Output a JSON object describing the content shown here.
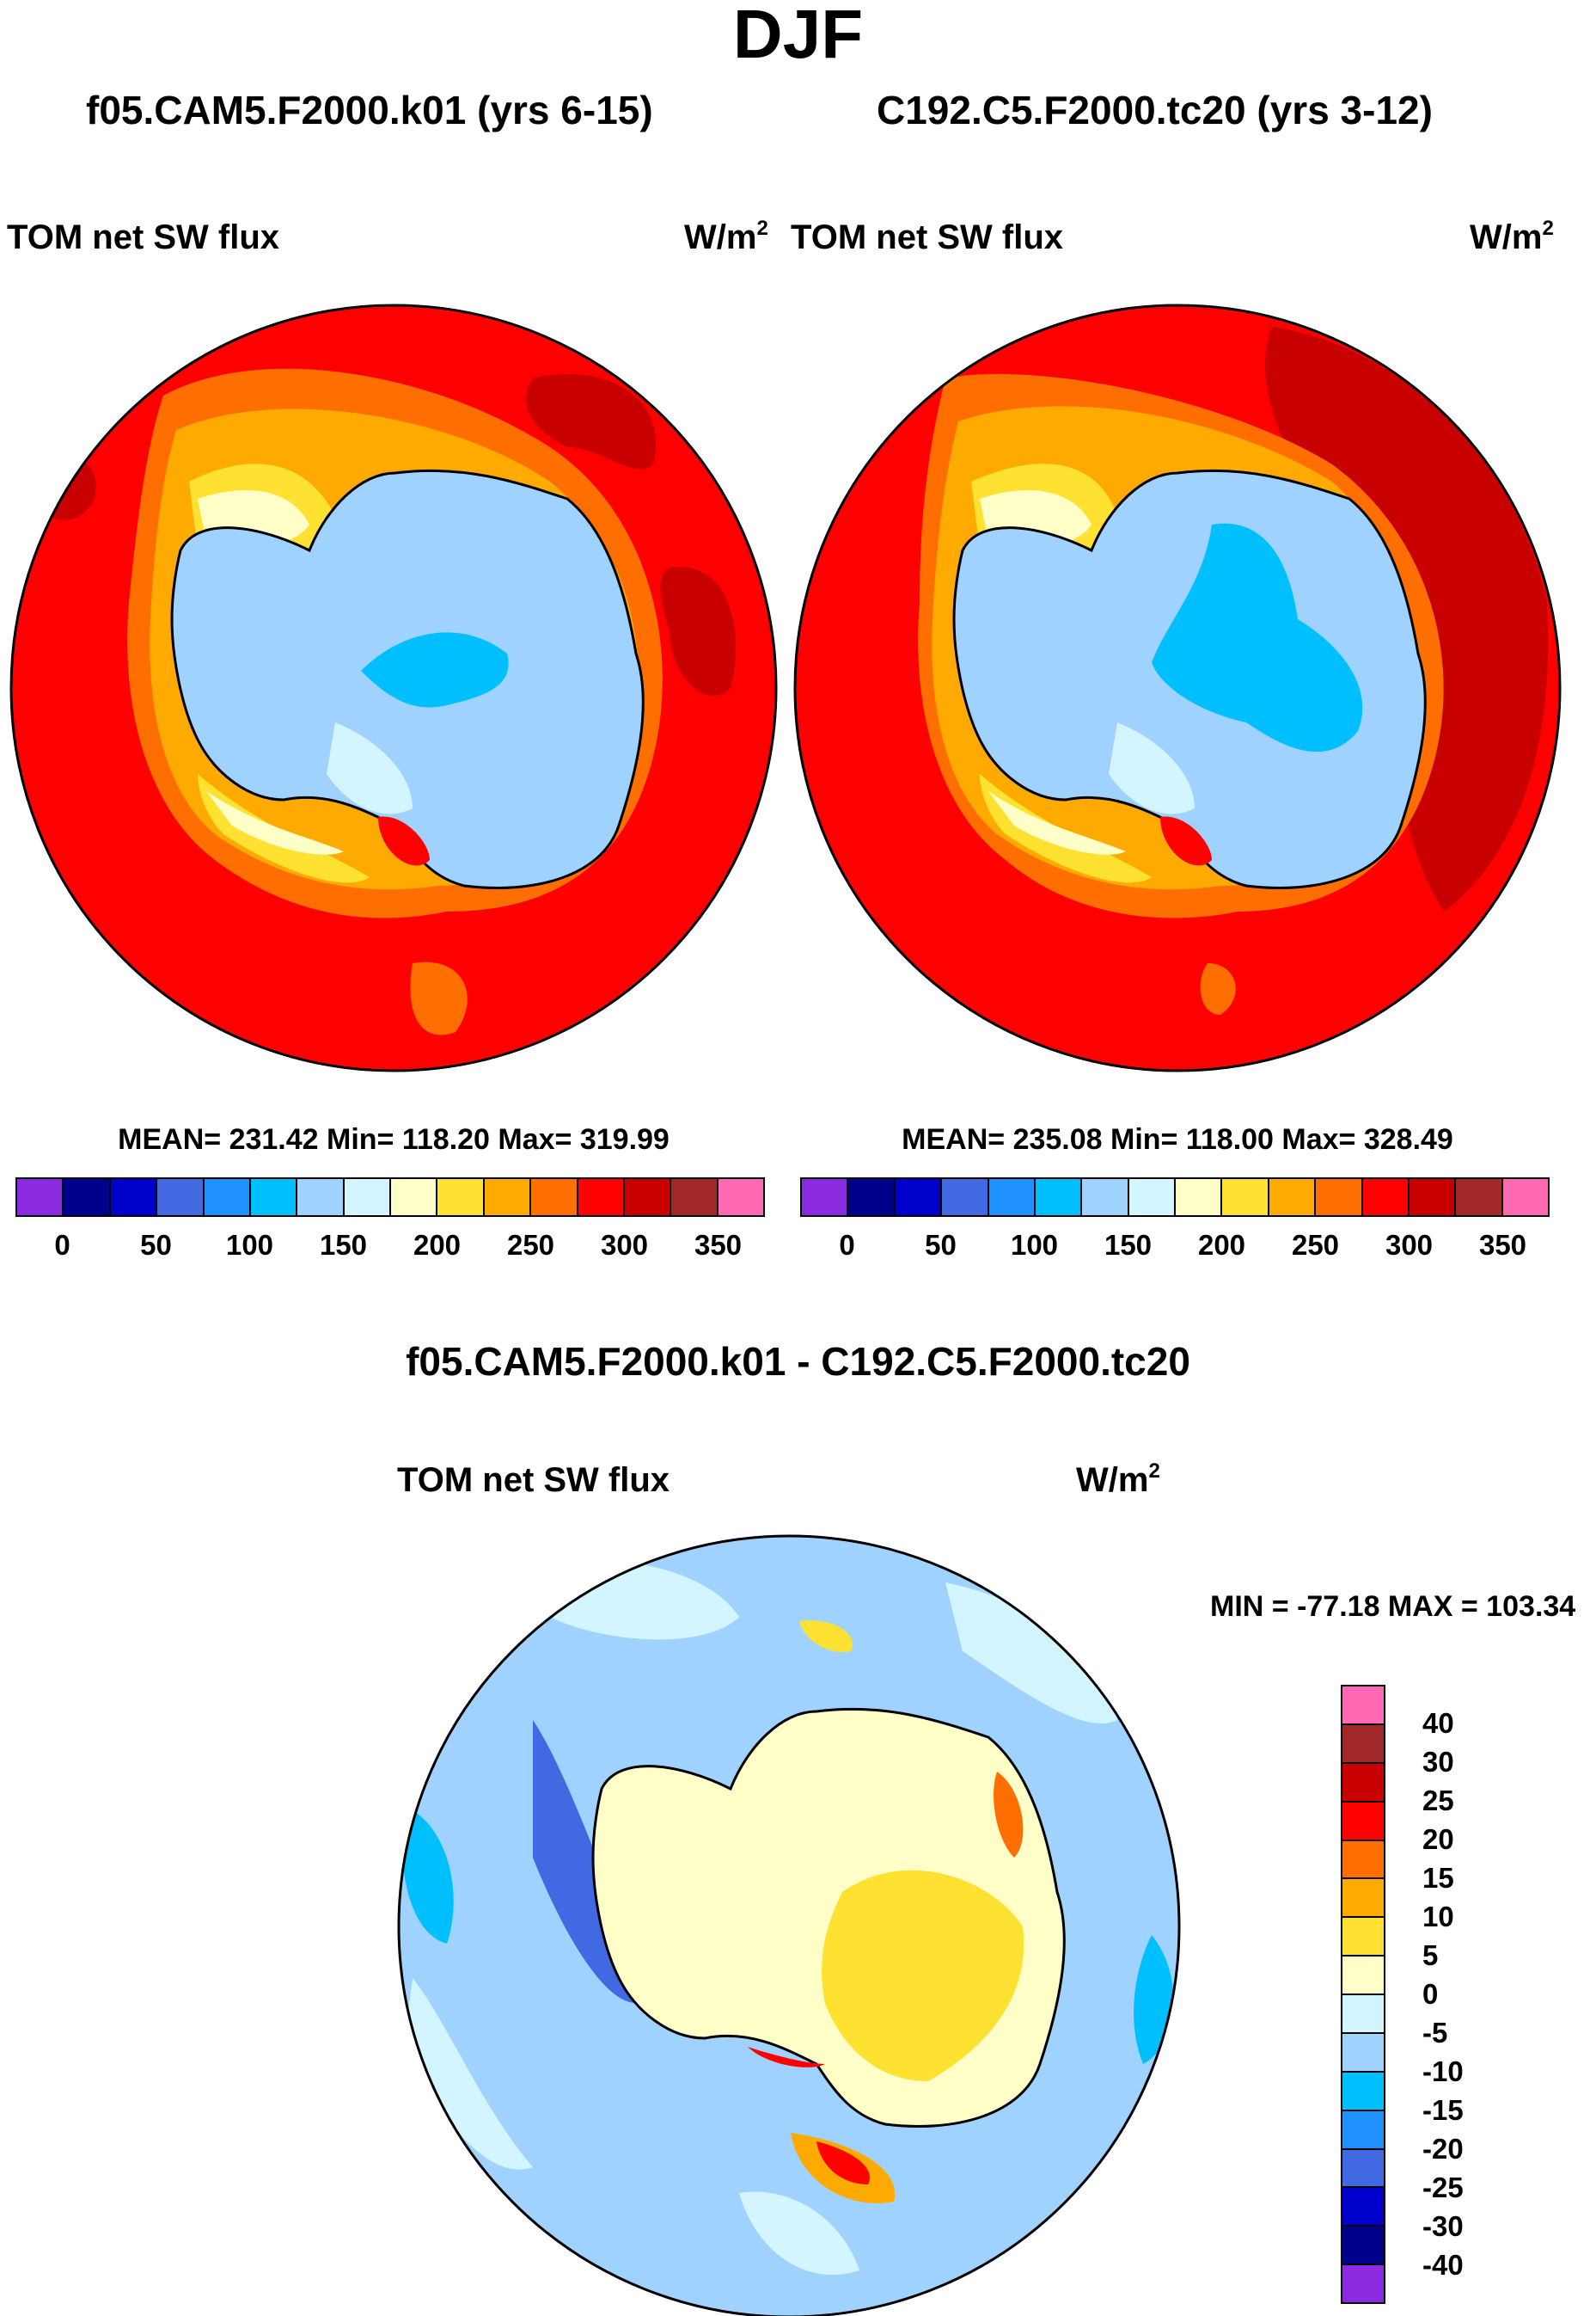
{
  "title": "DJF",
  "panels": [
    {
      "case": "f05.CAM5.F2000.k01 (yrs 6-15)",
      "variable": "TOM net SW flux",
      "units_base": "W/m",
      "units_exp": "2",
      "stats": "MEAN= 231.42  Min= 118.20  Max= 319.99"
    },
    {
      "case": "C192.C5.F2000.tc20 (yrs 3-12)",
      "variable": "TOM net SW flux",
      "units_base": "W/m",
      "units_exp": "2",
      "stats": "MEAN= 235.08  Min= 118.00  Max= 328.49"
    }
  ],
  "diff": {
    "title": "f05.CAM5.F2000.k01 - C192.C5.F2000.tc20",
    "variable": "TOM net SW flux",
    "units_base": "W/m",
    "units_exp": "2",
    "minmax": "MIN = -77.18 MAX = 103.34"
  },
  "colorbar_main": {
    "colors": [
      "#8a2be2",
      "#00008b",
      "#0000cd",
      "#4169e1",
      "#1e90ff",
      "#00bfff",
      "#a0d2ff",
      "#d2f5ff",
      "#ffffc8",
      "#ffe132",
      "#ffaa00",
      "#ff6e00",
      "#ff0000",
      "#c80000",
      "#a02828",
      "#ff69b4"
    ],
    "tick_labels": [
      "0",
      "50",
      "100",
      "150",
      "200",
      "250",
      "300",
      "350"
    ]
  },
  "colorbar_diff": {
    "colors": [
      "#ff69b4",
      "#a02828",
      "#c80000",
      "#ff0000",
      "#ff6e00",
      "#ffaa00",
      "#ffe132",
      "#ffffc8",
      "#d2f5ff",
      "#a0d2ff",
      "#00bfff",
      "#1e90ff",
      "#4169e1",
      "#0000cd",
      "#00008b",
      "#8a2be2"
    ],
    "tick_labels": [
      "40",
      "30",
      "25",
      "20",
      "15",
      "10",
      "5",
      "0",
      "-5",
      "-10",
      "-15",
      "-20",
      "-25",
      "-30",
      "-40"
    ]
  }
}
